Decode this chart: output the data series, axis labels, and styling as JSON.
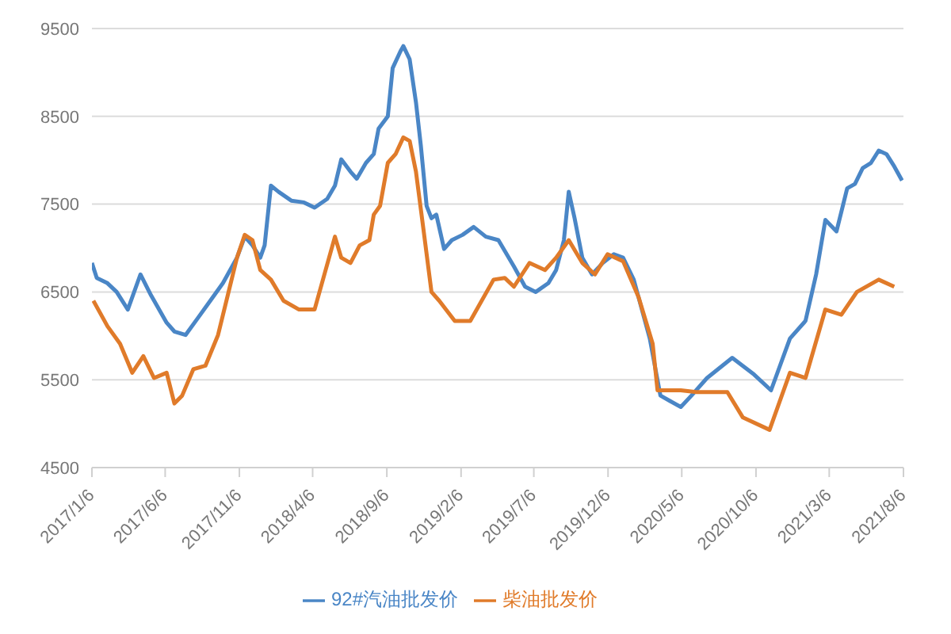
{
  "chart_data": {
    "type": "line",
    "xlim": [
      "2017-01-06",
      "2021-08-06"
    ],
    "xticks": [
      {
        "value": "2017-01-06",
        "label": "2017/1/6"
      },
      {
        "value": "2017-06-06",
        "label": "2017/6/6"
      },
      {
        "value": "2017-11-06",
        "label": "2017/11/6"
      },
      {
        "value": "2018-04-06",
        "label": "2018/4/6"
      },
      {
        "value": "2018-09-06",
        "label": "2018/9/6"
      },
      {
        "value": "2019-02-06",
        "label": "2019/2/6"
      },
      {
        "value": "2019-07-06",
        "label": "2019/7/6"
      },
      {
        "value": "2019-12-06",
        "label": "2019/12/6"
      },
      {
        "value": "2020-05-06",
        "label": "2020/5/6"
      },
      {
        "value": "2020-10-06",
        "label": "2020/10/6"
      },
      {
        "value": "2021-03-06",
        "label": "2021/3/6"
      },
      {
        "value": "2021-08-06",
        "label": "2021/8/6"
      }
    ],
    "ylim": [
      4500,
      9500
    ],
    "yticks": [
      4500,
      5500,
      6500,
      7500,
      8500,
      9500
    ],
    "grid": "y",
    "legend": "bottom",
    "marker": "none",
    "line_style": "solid",
    "series": [
      {
        "name": "92#汽油批发价",
        "color": "#4a86c6",
        "x": [
          "2017-01-06",
          "2017-01-16",
          "2017-02-07",
          "2017-02-26",
          "2017-03-21",
          "2017-04-16",
          "2017-05-08",
          "2017-06-09",
          "2017-06-25",
          "2017-07-18",
          "2017-08-12",
          "2017-09-07",
          "2017-10-03",
          "2017-11-01",
          "2017-11-17",
          "2017-12-03",
          "2017-12-19",
          "2017-12-28",
          "2018-01-10",
          "2018-01-26",
          "2018-02-21",
          "2018-03-19",
          "2018-04-10",
          "2018-05-06",
          "2018-05-22",
          "2018-06-04",
          "2018-06-23",
          "2018-07-06",
          "2018-07-25",
          "2018-08-10",
          "2018-08-20",
          "2018-09-08",
          "2018-09-18",
          "2018-10-04",
          "2018-10-10",
          "2018-10-23",
          "2018-11-05",
          "2018-11-15",
          "2018-11-27",
          "2018-12-07",
          "2018-12-17",
          "2019-01-02",
          "2019-01-18",
          "2019-02-09",
          "2019-03-04",
          "2019-03-29",
          "2019-04-24",
          "2019-05-26",
          "2019-06-18",
          "2019-07-10",
          "2019-08-05",
          "2019-08-21",
          "2019-09-06",
          "2019-09-16",
          "2019-09-28",
          "2019-10-14",
          "2019-11-03",
          "2019-11-25",
          "2019-12-18",
          "2020-01-06",
          "2020-01-28",
          "2020-03-01",
          "2020-03-23",
          "2020-04-11",
          "2020-05-04",
          "2020-05-26",
          "2020-06-27",
          "2020-08-18",
          "2020-10-02",
          "2020-11-06",
          "2020-12-15",
          "2021-01-16",
          "2021-02-07",
          "2021-02-26",
          "2021-03-21",
          "2021-04-12",
          "2021-04-28",
          "2021-05-14",
          "2021-05-31",
          "2021-06-16",
          "2021-07-02",
          "2021-07-18",
          "2021-08-03"
        ],
        "values": [
          6830,
          6660,
          6600,
          6500,
          6300,
          6700,
          6460,
          6150,
          6050,
          6010,
          6200,
          6400,
          6600,
          6890,
          7130,
          7030,
          6890,
          7030,
          7710,
          7640,
          7540,
          7520,
          7460,
          7560,
          7710,
          8010,
          7870,
          7790,
          7970,
          8070,
          8360,
          8500,
          9050,
          9240,
          9300,
          9150,
          8660,
          8170,
          7480,
          7340,
          7380,
          6990,
          7090,
          7150,
          7240,
          7130,
          7090,
          6790,
          6560,
          6500,
          6600,
          6750,
          7090,
          7640,
          7340,
          6890,
          6700,
          6830,
          6930,
          6890,
          6640,
          5970,
          5320,
          5260,
          5190,
          5320,
          5520,
          5750,
          5560,
          5380,
          5970,
          6170,
          6700,
          7320,
          7190,
          7680,
          7730,
          7910,
          7970,
          8110,
          8070,
          7930,
          7770
        ]
      },
      {
        "name": "柴油批发价",
        "color": "#e07b2a",
        "x": [
          "2017-01-09",
          "2017-02-07",
          "2017-03-05",
          "2017-03-30",
          "2017-04-22",
          "2017-05-14",
          "2017-06-09",
          "2017-06-25",
          "2017-07-11",
          "2017-08-03",
          "2017-08-28",
          "2017-09-23",
          "2017-11-01",
          "2017-11-17",
          "2017-12-03",
          "2017-12-19",
          "2018-01-10",
          "2018-02-05",
          "2018-03-09",
          "2018-04-10",
          "2018-05-22",
          "2018-06-04",
          "2018-06-23",
          "2018-07-12",
          "2018-08-01",
          "2018-08-10",
          "2018-08-23",
          "2018-09-08",
          "2018-09-24",
          "2018-10-10",
          "2018-10-23",
          "2018-11-05",
          "2018-11-21",
          "2018-12-07",
          "2018-12-23",
          "2019-01-24",
          "2019-02-25",
          "2019-04-14",
          "2019-05-07",
          "2019-05-26",
          "2019-06-27",
          "2019-07-29",
          "2019-08-21",
          "2019-09-16",
          "2019-10-14",
          "2019-11-09",
          "2019-12-05",
          "2020-01-06",
          "2020-02-07",
          "2020-03-07",
          "2020-03-17",
          "2020-05-04",
          "2020-06-05",
          "2020-08-08",
          "2020-09-09",
          "2020-11-03",
          "2020-12-15",
          "2021-01-16",
          "2021-02-26",
          "2021-03-31",
          "2021-05-02",
          "2021-06-16",
          "2021-07-18"
        ],
        "values": [
          6400,
          6110,
          5910,
          5580,
          5770,
          5520,
          5580,
          5230,
          5320,
          5620,
          5660,
          6010,
          6890,
          7150,
          7090,
          6750,
          6640,
          6400,
          6300,
          6300,
          7130,
          6890,
          6830,
          7030,
          7090,
          7380,
          7480,
          7970,
          8070,
          8260,
          8220,
          7870,
          7190,
          6500,
          6400,
          6170,
          6170,
          6640,
          6660,
          6560,
          6830,
          6750,
          6890,
          7090,
          6830,
          6700,
          6930,
          6850,
          6440,
          5910,
          5380,
          5380,
          5360,
          5360,
          5070,
          4930,
          5580,
          5520,
          6300,
          6240,
          6500,
          6640,
          6560
        ]
      }
    ]
  }
}
